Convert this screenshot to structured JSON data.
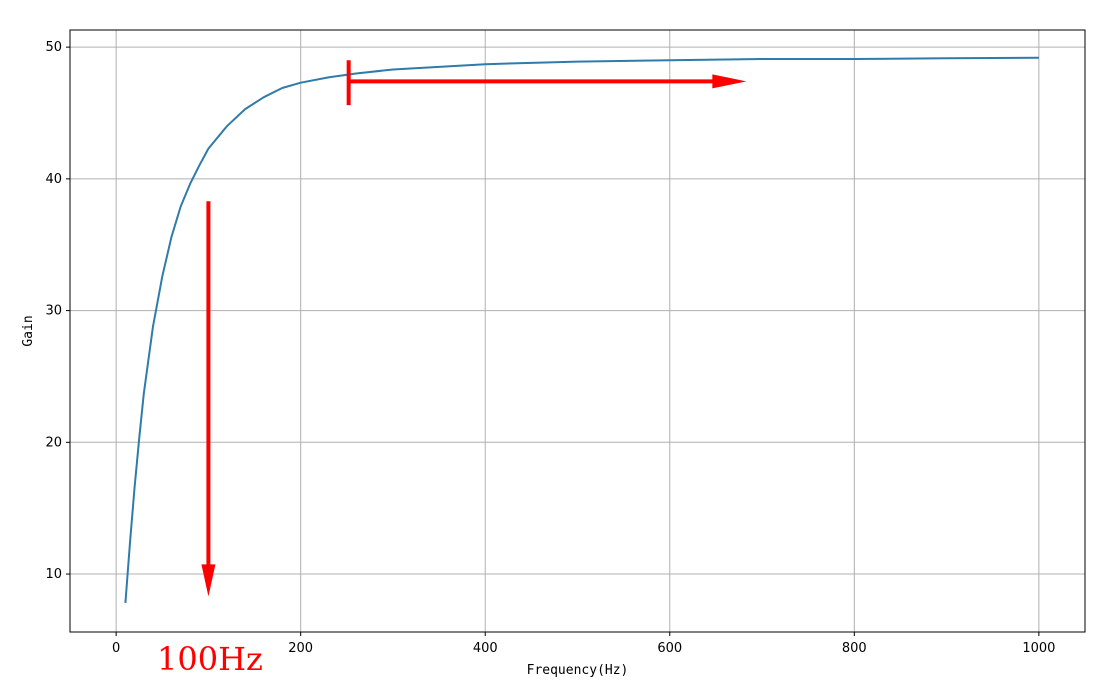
{
  "chart_data": {
    "type": "line",
    "title": "",
    "xlabel": "Frequency(Hz)",
    "ylabel": "Gain",
    "xlim": [
      -50,
      1050
    ],
    "ylim": [
      5.6,
      51.3
    ],
    "grid": true,
    "x_ticks": [
      0,
      200,
      400,
      600,
      800,
      1000
    ],
    "x_tick_labels": [
      "0",
      "200",
      "400",
      "600",
      "800",
      "1000"
    ],
    "y_ticks": [
      10,
      20,
      30,
      40,
      50
    ],
    "y_tick_labels": [
      "10",
      "20",
      "30",
      "40",
      "50"
    ],
    "line_color": "#2f7baa",
    "series": [
      {
        "x": [
          10,
          15,
          20,
          25,
          30,
          40,
          50,
          60,
          70,
          80,
          90,
          100,
          120,
          140,
          160,
          180,
          200,
          230,
          260,
          300,
          350,
          400,
          450,
          500,
          600,
          700,
          800,
          900,
          1000
        ],
        "y": [
          7.8,
          12.4,
          16.6,
          20.3,
          23.7,
          28.8,
          32.6,
          35.6,
          37.9,
          39.6,
          41.0,
          42.3,
          44.0,
          45.3,
          46.2,
          46.9,
          47.3,
          47.7,
          48.0,
          48.3,
          48.5,
          48.7,
          48.8,
          48.9,
          49.0,
          49.1,
          49.1,
          49.15,
          49.2
        ]
      }
    ],
    "annotations": {
      "text": "100Hz",
      "text_color": "#ff0000",
      "arrow_color": "#ff0000",
      "vertical_arrow": {
        "x": 100,
        "y_from": 38.3,
        "y_to": 8.3
      },
      "horizontal_arrow": {
        "y": 47.4,
        "x_from": 252,
        "x_to": 683
      },
      "marker_tick": {
        "x": 252,
        "y_from": 45.6,
        "y_to": 49.0
      }
    }
  }
}
